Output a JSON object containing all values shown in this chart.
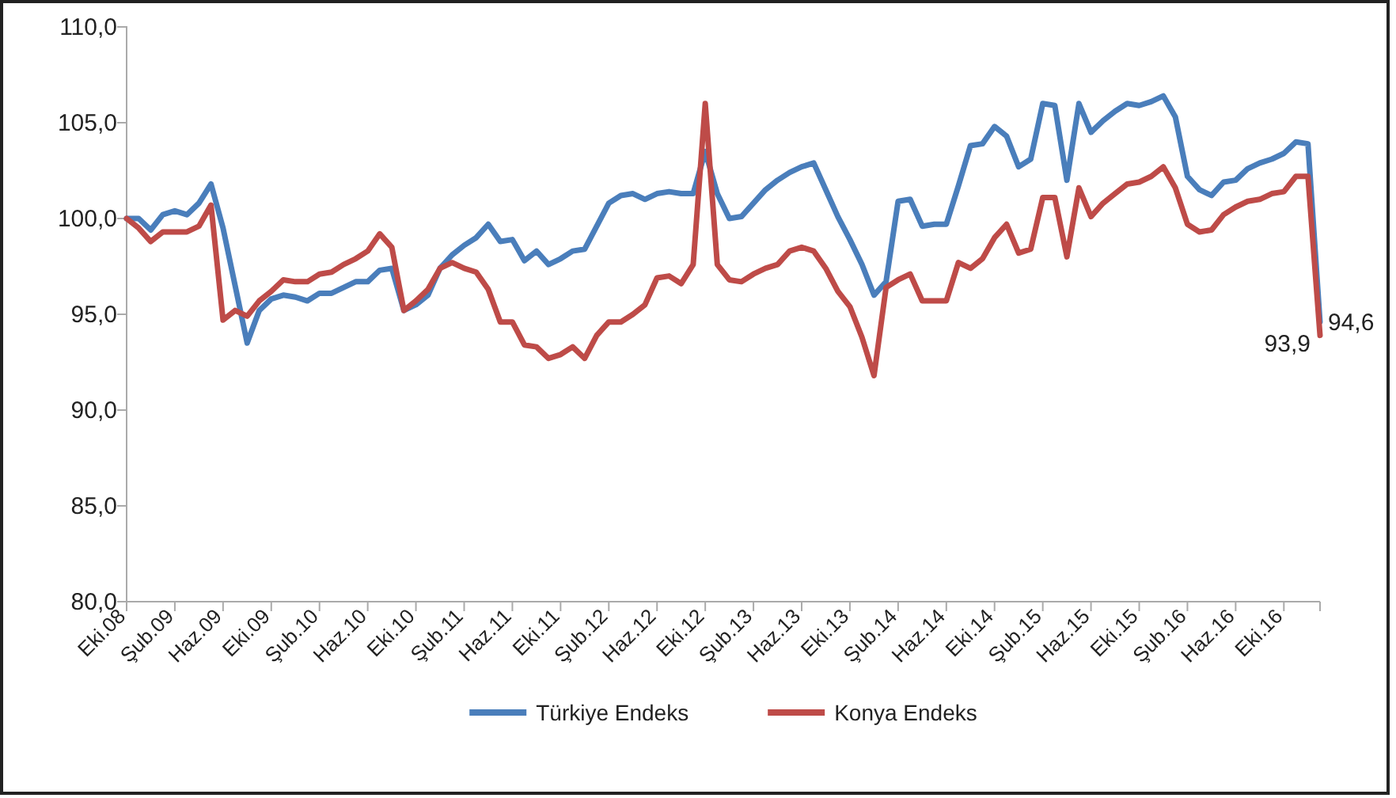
{
  "chart_data": {
    "type": "line",
    "categories": [
      "Eki.08",
      null,
      null,
      null,
      "Şub.09",
      null,
      null,
      null,
      "Haz.09",
      null,
      null,
      null,
      "Eki.09",
      null,
      null,
      null,
      "Şub.10",
      null,
      null,
      null,
      "Haz.10",
      null,
      null,
      null,
      "Eki.10",
      null,
      null,
      null,
      "Şub.11",
      null,
      null,
      null,
      "Haz.11",
      null,
      null,
      null,
      "Eki.11",
      null,
      null,
      null,
      "Şub.12",
      null,
      null,
      null,
      "Haz.12",
      null,
      null,
      null,
      "Eki.12",
      null,
      null,
      null,
      "Şub.13",
      null,
      null,
      null,
      "Haz.13",
      null,
      null,
      null,
      "Eki.13",
      null,
      null,
      null,
      "Şub.14",
      null,
      null,
      null,
      "Haz.14",
      null,
      null,
      null,
      "Eki.14",
      null,
      null,
      null,
      "Şub.15",
      null,
      null,
      null,
      "Haz.15",
      null,
      null,
      null,
      "Eki.15",
      null,
      null,
      null,
      "Şub.16",
      null,
      null,
      null,
      "Haz.16",
      null,
      null,
      null,
      "Eki.16",
      null,
      null,
      null
    ],
    "series": [
      {
        "name": "Türkiye Endeks",
        "color": "#4a7ebb",
        "values": [
          100.0,
          100.0,
          99.4,
          100.2,
          100.4,
          100.2,
          100.8,
          101.8,
          99.5,
          96.5,
          93.5,
          95.2,
          95.8,
          96.0,
          95.9,
          95.7,
          96.1,
          96.1,
          96.4,
          96.7,
          96.7,
          97.3,
          97.4,
          95.2,
          95.5,
          96.0,
          97.4,
          98.1,
          98.6,
          99.0,
          99.7,
          98.8,
          98.9,
          97.8,
          98.3,
          97.6,
          97.9,
          98.3,
          98.4,
          99.6,
          100.8,
          101.2,
          101.3,
          101.0,
          101.3,
          101.4,
          101.3,
          101.3,
          103.5,
          101.3,
          100.0,
          100.1,
          100.8,
          101.5,
          102.0,
          102.4,
          102.7,
          102.9,
          101.5,
          100.1,
          98.9,
          97.6,
          96.0,
          96.7,
          100.9,
          101.0,
          99.6,
          99.7,
          99.7,
          101.7,
          103.8,
          103.9,
          104.8,
          104.3,
          102.7,
          103.1,
          106.0,
          105.9,
          102.0,
          106.0,
          104.5,
          105.1,
          105.6,
          106.0,
          105.9,
          106.1,
          106.4,
          105.3,
          102.2,
          101.5,
          101.2,
          101.9,
          102.0,
          102.6,
          102.9,
          103.1,
          103.4,
          104.0,
          103.9,
          94.6
        ],
        "value_labels": [
          null,
          null,
          null,
          null,
          null,
          null,
          null,
          null,
          null,
          null,
          null,
          null,
          null,
          null,
          null,
          null,
          null,
          null,
          null,
          null,
          null,
          null,
          null,
          null,
          null,
          null,
          null,
          null,
          null,
          null,
          null,
          null,
          null,
          null,
          null,
          null,
          null,
          null,
          null,
          null,
          null,
          null,
          null,
          null,
          null,
          null,
          null,
          null,
          null,
          null,
          null,
          null,
          null,
          null,
          null,
          null,
          null,
          null,
          null,
          null,
          null,
          null,
          null,
          null,
          null,
          null,
          null,
          null,
          null,
          null,
          null,
          null,
          null,
          null,
          null,
          null,
          null,
          null,
          null,
          null,
          null,
          null,
          null,
          null,
          null,
          null,
          null,
          null,
          null,
          null,
          null,
          null,
          null,
          null,
          null,
          null,
          null,
          null,
          null,
          "94,6"
        ]
      },
      {
        "name": "Konya Endeks",
        "color": "#be4b48",
        "values": [
          100.0,
          99.5,
          98.8,
          99.3,
          99.3,
          99.3,
          99.6,
          100.7,
          94.7,
          95.2,
          94.9,
          95.7,
          96.2,
          96.8,
          96.7,
          96.7,
          97.1,
          97.2,
          97.6,
          97.9,
          98.3,
          99.2,
          98.5,
          95.2,
          95.7,
          96.3,
          97.4,
          97.7,
          97.4,
          97.2,
          96.3,
          94.6,
          94.6,
          93.4,
          93.3,
          92.7,
          92.9,
          93.3,
          92.7,
          93.9,
          94.6,
          94.6,
          95.0,
          95.5,
          96.9,
          97.0,
          96.6,
          97.6,
          106.0,
          97.6,
          96.8,
          96.7,
          97.1,
          97.4,
          97.6,
          98.3,
          98.5,
          98.3,
          97.4,
          96.2,
          95.4,
          93.8,
          91.8,
          96.4,
          96.8,
          97.1,
          95.7,
          95.7,
          95.7,
          97.7,
          97.4,
          97.9,
          99.0,
          99.7,
          98.2,
          98.4,
          101.1,
          101.1,
          98.0,
          101.6,
          100.1,
          100.8,
          101.3,
          101.8,
          101.9,
          102.2,
          102.7,
          101.6,
          99.7,
          99.3,
          99.4,
          100.2,
          100.6,
          100.9,
          101.0,
          101.3,
          101.4,
          102.2,
          102.2,
          93.9
        ],
        "value_labels": [
          null,
          null,
          null,
          null,
          null,
          null,
          null,
          null,
          null,
          null,
          null,
          null,
          null,
          null,
          null,
          null,
          null,
          null,
          null,
          null,
          null,
          null,
          null,
          null,
          null,
          null,
          null,
          null,
          null,
          null,
          null,
          null,
          null,
          null,
          null,
          null,
          null,
          null,
          null,
          null,
          null,
          null,
          null,
          null,
          null,
          null,
          null,
          null,
          null,
          null,
          null,
          null,
          null,
          null,
          null,
          null,
          null,
          null,
          null,
          null,
          null,
          null,
          null,
          null,
          null,
          null,
          null,
          null,
          null,
          null,
          null,
          null,
          null,
          null,
          null,
          null,
          null,
          null,
          null,
          null,
          null,
          null,
          null,
          null,
          null,
          null,
          null,
          null,
          null,
          null,
          null,
          null,
          null,
          null,
          null,
          null,
          null,
          null,
          null,
          "93,9"
        ]
      }
    ],
    "ylim": [
      80,
      110
    ],
    "yticks": [
      {
        "value": 80,
        "label": "80,0"
      },
      {
        "value": 85,
        "label": "85,0"
      },
      {
        "value": 90,
        "label": "90,0"
      },
      {
        "value": 95,
        "label": "95,0"
      },
      {
        "value": 100,
        "label": "100,0"
      },
      {
        "value": 105,
        "label": "105,0"
      },
      {
        "value": 110,
        "label": "110,0"
      }
    ],
    "legend": "bottom",
    "marker": "none",
    "line_style": "solid"
  }
}
